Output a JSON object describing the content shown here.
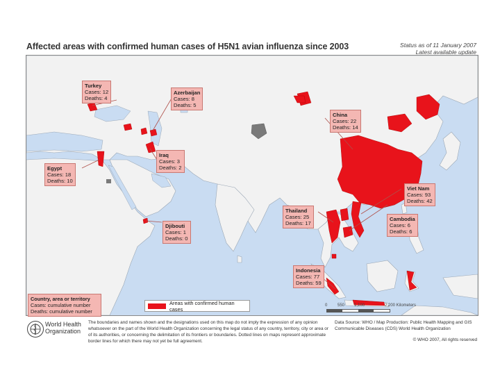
{
  "title": "Affected areas with confirmed human cases of H5N1 avian influenza since 2003",
  "status": {
    "line1": "Status as of 11 January 2007",
    "line2": "Latest available update"
  },
  "colors": {
    "ocean": "#c9dcf2",
    "land": "#f2f2f2",
    "affected": "#e8131b",
    "callout_bg": "#f4b7b3",
    "no_data": "#7a7a7a"
  },
  "callouts": [
    {
      "id": "turkey",
      "country": "Turkey",
      "cases": "Cases: 12",
      "deaths": "Deaths: 4"
    },
    {
      "id": "azerbaijan",
      "country": "Azerbaijan",
      "cases": "Cases: 8",
      "deaths": "Deaths: 5"
    },
    {
      "id": "china",
      "country": "China",
      "cases": "Cases: 22",
      "deaths": "Deaths: 14"
    },
    {
      "id": "egypt",
      "country": "Egypt",
      "cases": "Cases: 18",
      "deaths": "Deaths: 10"
    },
    {
      "id": "iraq",
      "country": "Iraq",
      "cases": "Cases: 3",
      "deaths": "Deaths: 2"
    },
    {
      "id": "vietnam",
      "country": "Viet Nam",
      "cases": "Cases: 93",
      "deaths": "Deaths: 42"
    },
    {
      "id": "thailand",
      "country": "Thailand",
      "cases": "Cases: 25",
      "deaths": "Deaths: 17"
    },
    {
      "id": "cambodia",
      "country": "Cambodia",
      "cases": "Cases: 6",
      "deaths": "Deaths: 6"
    },
    {
      "id": "djibouti",
      "country": "Djibouti",
      "cases": "Cases: 1",
      "deaths": "Deaths: 0"
    },
    {
      "id": "indonesia",
      "country": "Indonesia",
      "cases": "Cases: 77",
      "deaths": "Deaths: 59"
    }
  ],
  "legend": {
    "key_line1": "Country, area or territory",
    "key_line2": "Cases: cumulative number",
    "key_line3": "Deaths: cumulative number",
    "area_label": "Areas with confirmed human cases"
  },
  "scale": {
    "t0": "0",
    "t1": "550",
    "t2": "1,100",
    "t3": "2,200 Kilometers"
  },
  "footer": {
    "who_line1": "World Health",
    "who_line2": "Organization",
    "disclaimer": "The boundaries and names shown and the designations used on this map do not imply the expression of any opinion whatsoever on the part of the World Health Organization concerning the legal status of any country, territory, city or area or of its authorities, or concerning the delimitation of its frontiers or boundaries. Dotted lines on maps represent approximate border lines for which there may not yet be full agreement.",
    "source": "Data Source: WHO / Map Production: Public Health Mapping and GIS Communicable Diseases (CDS) World Health Organization",
    "copyright": "© WHO 2007, All rights reserved"
  }
}
